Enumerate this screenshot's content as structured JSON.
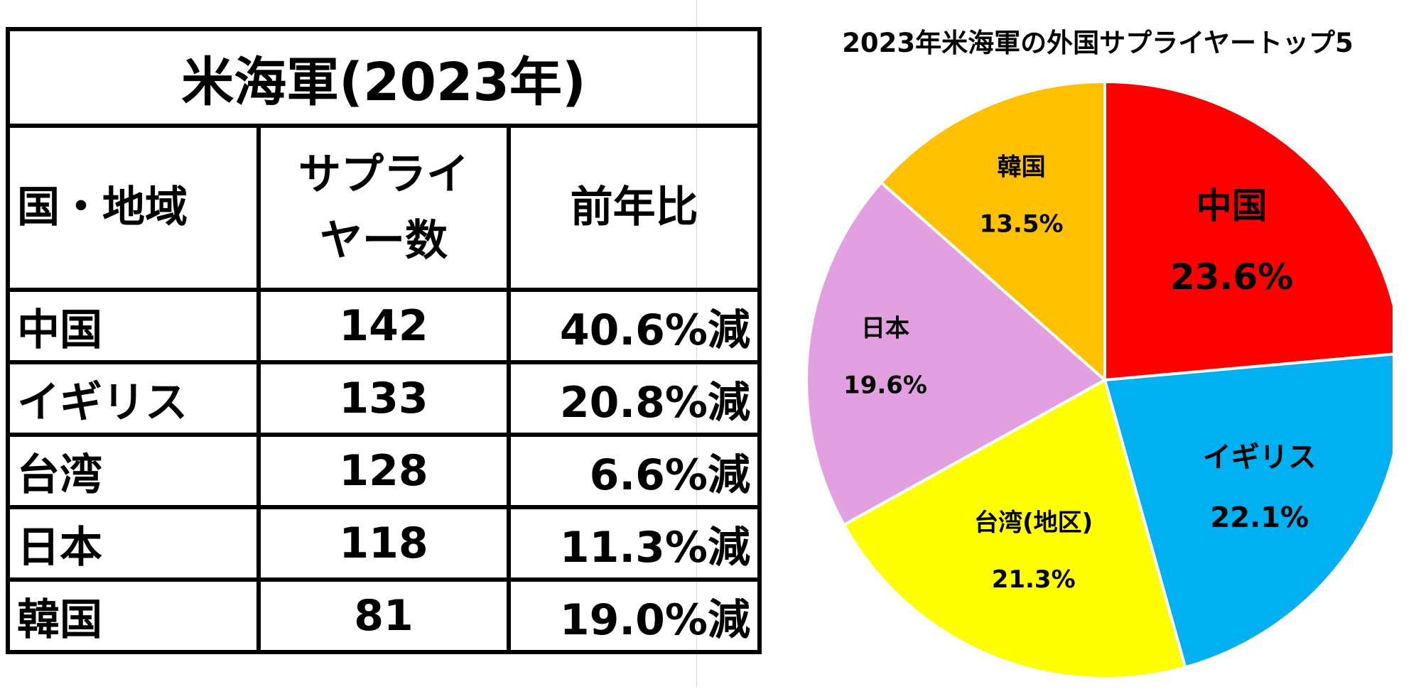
{
  "table": {
    "title": "米海軍(2023年)",
    "headers": {
      "country": "国・地域",
      "count_line1": "サプライ",
      "count_line2": "ヤー数",
      "change": "前年比"
    },
    "rows": [
      {
        "country": "中国",
        "count": "142",
        "change": "40.6%減"
      },
      {
        "country": "イギリス",
        "count": "133",
        "change": "20.8%減"
      },
      {
        "country": "台湾",
        "count": "128",
        "change": "6.6%減"
      },
      {
        "country": "日本",
        "count": "118",
        "change": "11.3%減"
      },
      {
        "country": "韓国",
        "count": "81",
        "change": "19.0%減"
      }
    ]
  },
  "chart_data": {
    "type": "pie",
    "title": "2023年米海軍の外国サプライヤートップ5",
    "slices": [
      {
        "label": "中国",
        "value": 23.6,
        "display": "23.6%",
        "color": "#ff0000"
      },
      {
        "label": "イギリス",
        "value": 22.1,
        "display": "22.1%",
        "color": "#00b0f0"
      },
      {
        "label": "台湾(地区)",
        "value": 21.3,
        "display": "21.3%",
        "color": "#ffff00"
      },
      {
        "label": "日本",
        "value": 19.6,
        "display": "19.6%",
        "color": "#e2a0e0"
      },
      {
        "label": "韓国",
        "value": 13.5,
        "display": "13.5%",
        "color": "#ffc000"
      }
    ]
  }
}
